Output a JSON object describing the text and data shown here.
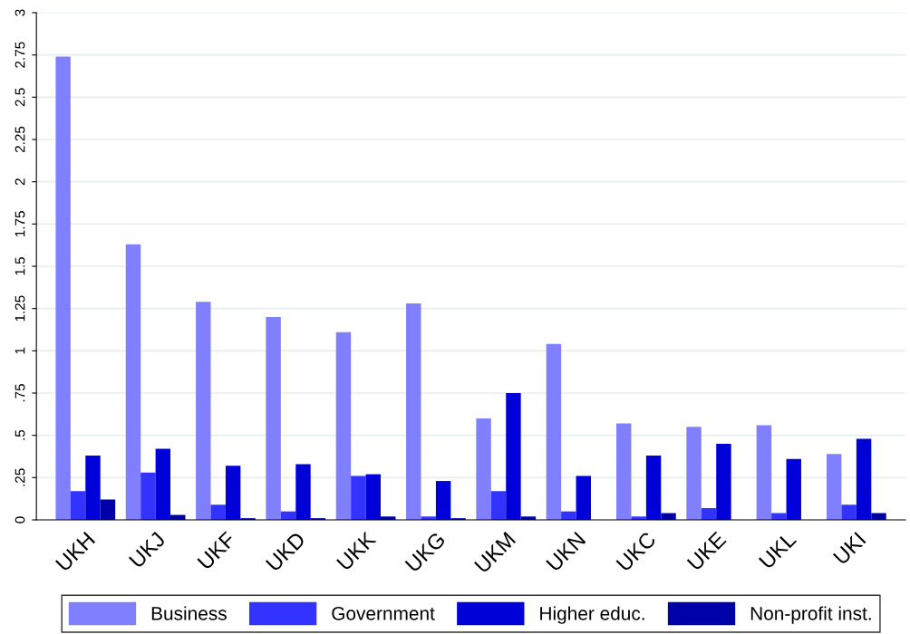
{
  "chart_data": {
    "type": "bar",
    "categories": [
      "UKH",
      "UKJ",
      "UKF",
      "UKD",
      "UKK",
      "UKG",
      "UKM",
      "UKN",
      "UKC",
      "UKE",
      "UKL",
      "UKI"
    ],
    "series": [
      {
        "name": "Business",
        "color": "#8080ff",
        "values": [
          2.74,
          1.63,
          1.29,
          1.2,
          1.11,
          1.28,
          0.6,
          1.04,
          0.57,
          0.55,
          0.56,
          0.39
        ]
      },
      {
        "name": "Government",
        "color": "#3333ff",
        "values": [
          0.17,
          0.28,
          0.09,
          0.05,
          0.26,
          0.02,
          0.17,
          0.05,
          0.02,
          0.07,
          0.04,
          0.09
        ]
      },
      {
        "name": "Higher educ.",
        "color": "#0000d9",
        "values": [
          0.38,
          0.42,
          0.32,
          0.33,
          0.27,
          0.23,
          0.75,
          0.26,
          0.38,
          0.45,
          0.36,
          0.48
        ]
      },
      {
        "name": "Non-profit inst.",
        "color": "#0000a8",
        "values": [
          0.12,
          0.03,
          0.01,
          0.01,
          0.02,
          0.01,
          0.02,
          0,
          0.04,
          0,
          0,
          0.04
        ]
      }
    ],
    "ylim": [
      0,
      3
    ],
    "yticks": [
      0,
      {
        "value": 0.25,
        "label": ".25"
      },
      {
        "value": 0.5,
        "label": ".5"
      },
      {
        "value": 0.75,
        "label": ".75"
      },
      1,
      1.25,
      1.5,
      1.75,
      2,
      2.25,
      2.5,
      2.75,
      3
    ],
    "grid": "y",
    "legend": "bottom"
  }
}
